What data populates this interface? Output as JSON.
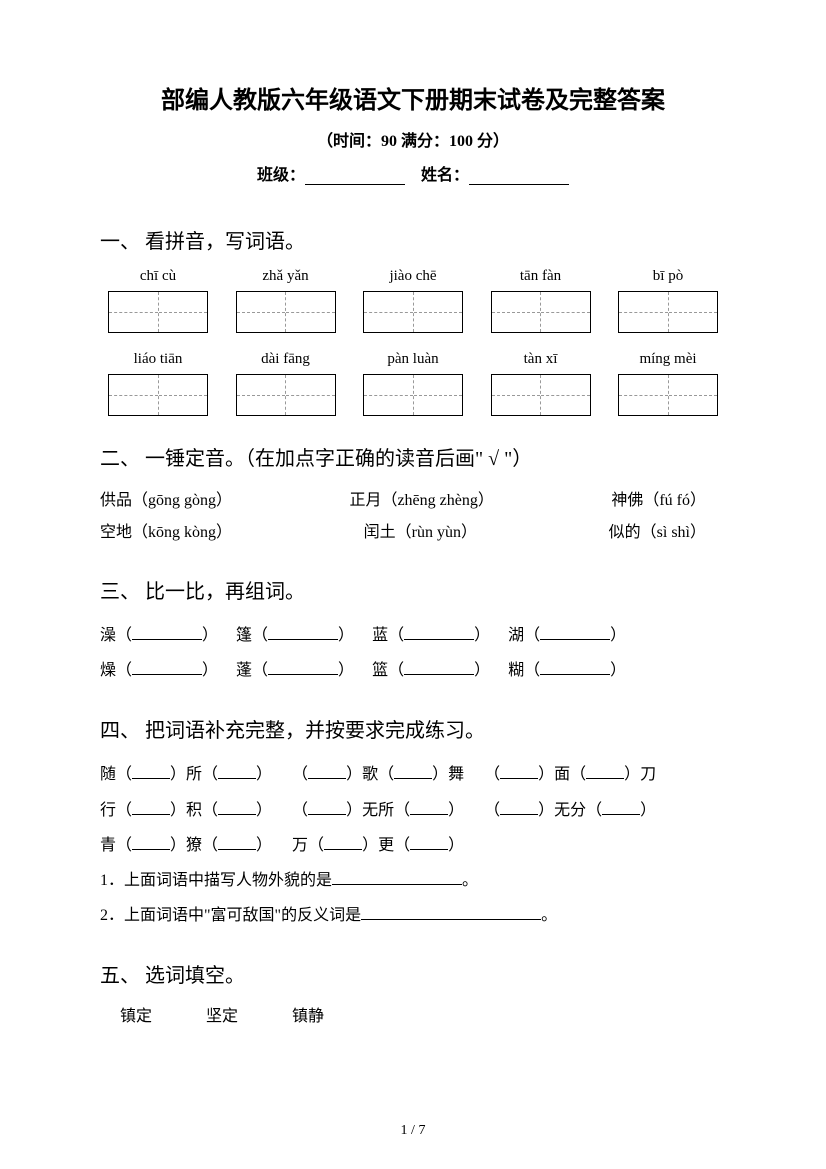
{
  "title": "部编人教版六年级语文下册期末试卷及完整答案",
  "subtitle": "（时间：90   满分：100 分）",
  "form": {
    "class_label": "班级：",
    "name_label": "姓名："
  },
  "sections": {
    "s1": {
      "heading": "一、 看拼音，写词语。"
    },
    "s2": {
      "heading": "二、 一锤定音。（在加点字正确的读音后画\" √ \"）"
    },
    "s3": {
      "heading": "三、 比一比，再组词。"
    },
    "s4": {
      "heading": "四、 把词语补充完整，并按要求完成练习。"
    },
    "s5": {
      "heading": "五、 选词填空。"
    }
  },
  "pinyin": {
    "row1": [
      "chī cù",
      "zhǎ yǎn",
      "jiào chē",
      "tān fàn",
      "bī pò"
    ],
    "row2": [
      "liáo tiān",
      "dài fāng",
      "pàn luàn",
      "tàn xī",
      "míng mèi"
    ]
  },
  "q2": {
    "line1": {
      "a": "供品（gōng    gòng）",
      "b": "正月（zhēng    zhèng）",
      "c": "神佛（fú    fó）"
    },
    "line2": {
      "a": "空地（kōng    kòng）",
      "b": "闰土（rùn    yùn）",
      "c": "似的（sì    shì）"
    }
  },
  "q3": {
    "row1": [
      "澡（",
      "篷（",
      "蓝（",
      "湖（"
    ],
    "row2": [
      "燥（",
      "蓬（",
      "篮（",
      "糊（"
    ]
  },
  "q4": {
    "line1": {
      "p1": "随（",
      "p2": "）所（",
      "p3": "）",
      "p4": "（",
      "p5": "）歌（",
      "p6": "）舞",
      "p7": "（",
      "p8": "）面（",
      "p9": "）刀"
    },
    "line2": {
      "p1": "行（",
      "p2": "）积（",
      "p3": "）",
      "p4": "（",
      "p5": "）无所（",
      "p6": "）",
      "p7": "（",
      "p8": "）无分（",
      "p9": "）"
    },
    "line3": {
      "p1": "青（",
      "p2": "）獠（",
      "p3": "）",
      "p4": "万（",
      "p5": "）更（",
      "p6": "）"
    },
    "sub1": "1．上面词语中描写人物外貌的是",
    "sub1_end": "。",
    "sub2": "2．上面词语中\"富可敌国\"的反义词是",
    "sub2_end": "。"
  },
  "q5": {
    "w1": "镇定",
    "w2": "坚定",
    "w3": "镇静"
  },
  "page": {
    "current": "1",
    "sep": " / ",
    "total": "7"
  }
}
